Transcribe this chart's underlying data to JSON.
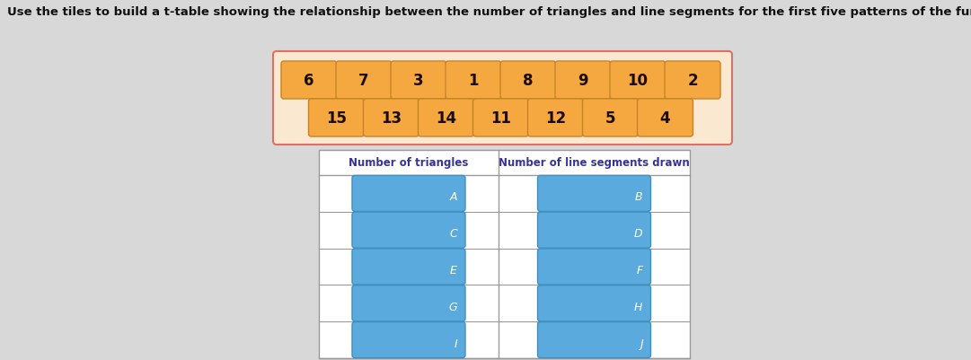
{
  "title": "Use the tiles to build a t-table showing the relationship between the number of triangles and line segments for the first five patterns of the function.",
  "title_fontsize": 9.5,
  "tile_row1": [
    "6",
    "7",
    "3",
    "1",
    "8",
    "9",
    "10",
    "2"
  ],
  "tile_row2": [
    "15",
    "13",
    "14",
    "11",
    "12",
    "5",
    "4"
  ],
  "tile_color": "#F5A840",
  "tile_border_color": "#C8832A",
  "tile_text_color": "#1A0A00",
  "tile_outer_border": "#D9736A",
  "tile_outer_fill": "#FBE8D0",
  "col1_header": "Number of triangles",
  "col2_header": "Number of line segments drawn",
  "table_rows": 5,
  "slot_labels_col1": [
    "A",
    "C",
    "E",
    "G",
    "I"
  ],
  "slot_labels_col2": [
    "B",
    "D",
    "F",
    "H",
    "J"
  ],
  "slot_color": "#5BAADE",
  "slot_border_color": "#4090C0",
  "slot_text_color": "#FFFFFF",
  "table_border_color": "#999999",
  "table_header_color": "#333399",
  "background_color": "#D8D8D8",
  "header_fontsize": 8.5,
  "tile_fontsize": 12,
  "slot_label_fontsize": 9
}
